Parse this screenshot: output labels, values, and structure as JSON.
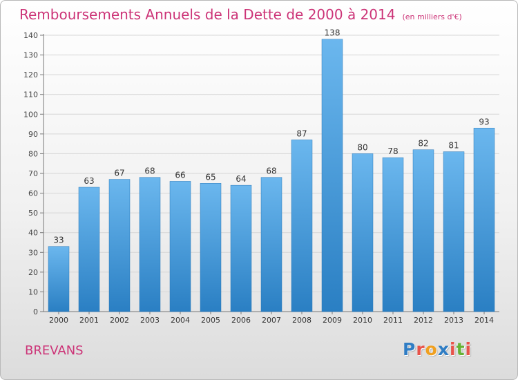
{
  "header": {
    "title": "Remboursements Annuels de la Dette de 2000 à 2014",
    "unit": "(en milliers d'€)"
  },
  "footer": {
    "commune": "BREVANS",
    "logo_letters": [
      "P",
      "r",
      "o",
      "x",
      "i",
      "t",
      "i"
    ]
  },
  "colors": {
    "title": "#cc3377",
    "bar_light": "#6bb7ee",
    "bar_dark": "#2a7fc3",
    "logo": [
      "#2f7dc4",
      "#e8534a",
      "#f0a020",
      "#2f7dc4",
      "#e8534a",
      "#66b233",
      "#e8534a"
    ]
  },
  "chart_data": {
    "type": "bar",
    "categories": [
      "2000",
      "2001",
      "2002",
      "2003",
      "2004",
      "2005",
      "2006",
      "2007",
      "2008",
      "2009",
      "2010",
      "2011",
      "2012",
      "2013",
      "2014"
    ],
    "values": [
      33,
      63,
      67,
      68,
      66,
      65,
      64,
      68,
      87,
      138,
      80,
      78,
      82,
      81,
      93
    ],
    "ylim": [
      0,
      140
    ],
    "yticks": [
      0,
      10,
      20,
      30,
      40,
      50,
      60,
      70,
      80,
      90,
      100,
      110,
      120,
      130,
      140
    ],
    "grid": true,
    "data_labels": true
  }
}
